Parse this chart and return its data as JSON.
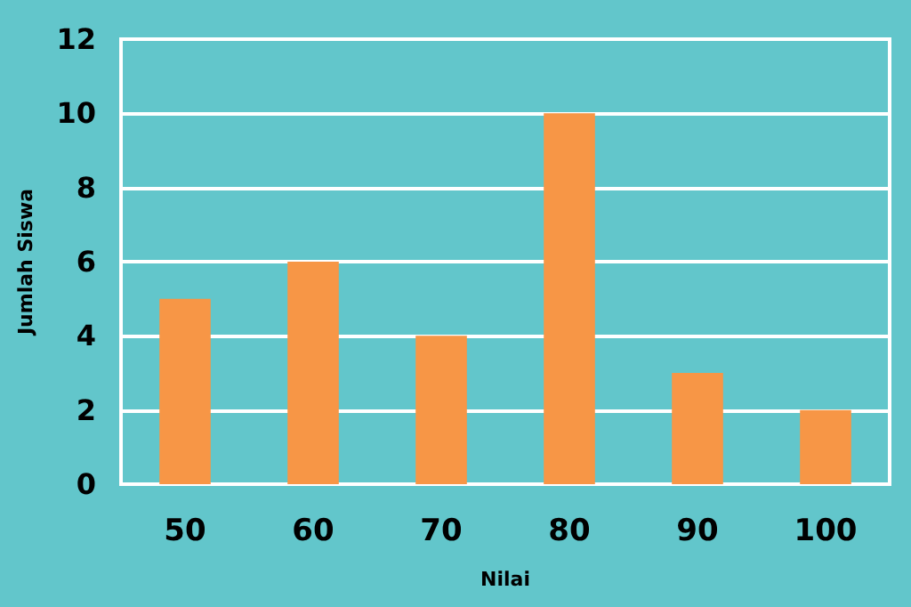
{
  "chart_data": {
    "type": "bar",
    "xlabel": "Nilai",
    "ylabel": "Jumlah Siswa",
    "categories": [
      "50",
      "60",
      "70",
      "80",
      "90",
      "100"
    ],
    "values": [
      5,
      6,
      4,
      10,
      3,
      2
    ],
    "color": "#f79646",
    "ylim": [
      0,
      12
    ],
    "yticks": [
      0,
      2,
      4,
      6,
      8,
      10,
      12
    ],
    "grid": "y"
  }
}
